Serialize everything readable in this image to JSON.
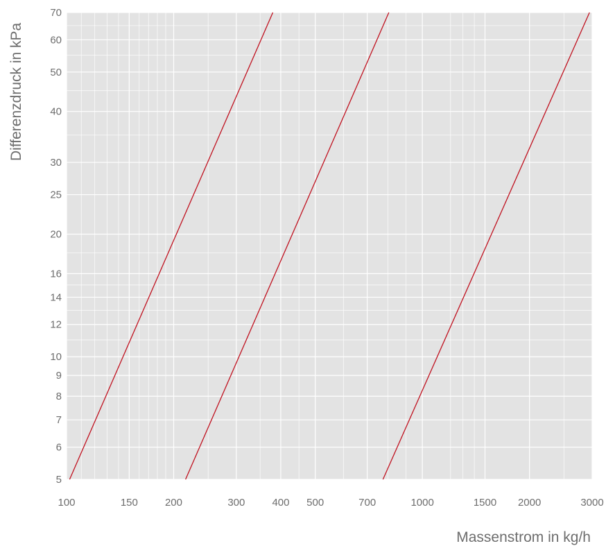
{
  "chart_data": {
    "type": "line",
    "xlabel": "Massenstrom in kg/h",
    "ylabel": "Differenzdruck in kPa",
    "x_scale": "log",
    "y_scale": "log",
    "xlim": [
      100,
      3000
    ],
    "ylim": [
      5,
      70
    ],
    "x_ticks": [
      100,
      150,
      200,
      300,
      400,
      500,
      700,
      1000,
      1500,
      2000,
      3000
    ],
    "y_ticks": [
      5,
      6,
      7,
      8,
      9,
      10,
      12,
      14,
      16,
      20,
      25,
      30,
      40,
      50,
      60,
      70
    ],
    "x_minor_grid": [
      110,
      120,
      130,
      140,
      160,
      170,
      180,
      190,
      250,
      350,
      450,
      600,
      800,
      900,
      1200,
      1300,
      1400,
      2500
    ],
    "y_minor_grid": [
      11,
      13,
      15,
      18,
      35,
      45,
      55,
      65
    ],
    "grid": true,
    "background": "#e3e3e3",
    "grid_color": "#ffffff",
    "line_color": "#c0111f",
    "series": [
      {
        "x": [
          102,
          380
        ],
        "y": [
          5,
          70
        ]
      },
      {
        "x": [
          216,
          805
        ],
        "y": [
          5,
          70
        ]
      },
      {
        "x": [
          775,
          2950
        ],
        "y": [
          5,
          70
        ]
      }
    ]
  }
}
